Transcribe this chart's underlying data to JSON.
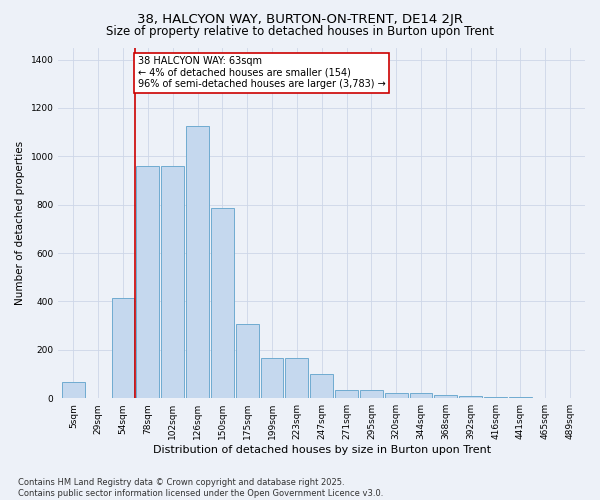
{
  "title": "38, HALCYON WAY, BURTON-ON-TRENT, DE14 2JR",
  "subtitle": "Size of property relative to detached houses in Burton upon Trent",
  "xlabel": "Distribution of detached houses by size in Burton upon Trent",
  "ylabel": "Number of detached properties",
  "categories": [
    "5sqm",
    "29sqm",
    "54sqm",
    "78sqm",
    "102sqm",
    "126sqm",
    "150sqm",
    "175sqm",
    "199sqm",
    "223sqm",
    "247sqm",
    "271sqm",
    "295sqm",
    "320sqm",
    "344sqm",
    "368sqm",
    "392sqm",
    "416sqm",
    "441sqm",
    "465sqm",
    "489sqm"
  ],
  "values": [
    68,
    0,
    415,
    960,
    960,
    1125,
    785,
    305,
    165,
    165,
    100,
    35,
    35,
    20,
    20,
    15,
    10,
    5,
    3,
    2,
    2
  ],
  "bar_color": "#c5d8ee",
  "bar_edge_color": "#6fabd0",
  "grid_color": "#cdd6e8",
  "bg_color": "#edf1f8",
  "property_line_x": 2.5,
  "annotation_text": "38 HALCYON WAY: 63sqm\n← 4% of detached houses are smaller (154)\n96% of semi-detached houses are larger (3,783) →",
  "annotation_box_color": "#ffffff",
  "annotation_border_color": "#cc0000",
  "property_line_color": "#cc0000",
  "ylim_max": 1450,
  "footnote": "Contains HM Land Registry data © Crown copyright and database right 2025.\nContains public sector information licensed under the Open Government Licence v3.0.",
  "title_fontsize": 9.5,
  "subtitle_fontsize": 8.5,
  "xlabel_fontsize": 8.0,
  "ylabel_fontsize": 7.5,
  "tick_fontsize": 6.5,
  "annotation_fontsize": 7.0,
  "footnote_fontsize": 6.0
}
